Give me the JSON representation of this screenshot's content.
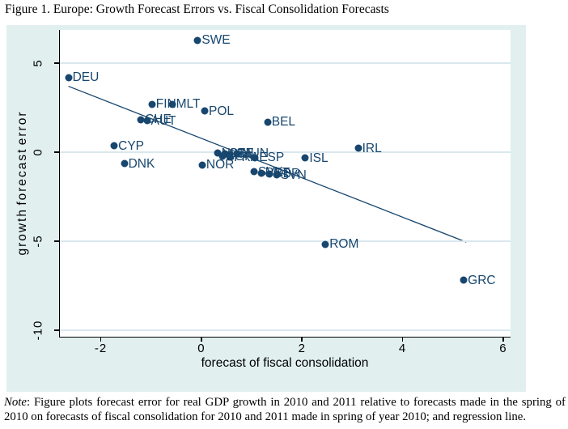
{
  "figure": {
    "title": "Figure 1. Europe: Growth Forecast Errors vs. Fiscal Consolidation Forecasts",
    "note_label": "Note",
    "note_text": ": Figure plots forecast error for real GDP growth in 2010 and 2011 relative to forecasts made in the spring of 2010 on forecasts of fiscal consolidation for 2010 and 2011 made in spring of year 2010; and regression line."
  },
  "chart_data": {
    "type": "scatter",
    "title": "Figure 1. Europe: Growth Forecast Errors vs. Fiscal Consolidation Forecasts",
    "xlabel": "forecast of fiscal consolidation",
    "ylabel": "growth forecast error",
    "xlim": [
      -2.83,
      6.13
    ],
    "ylim": [
      -10.36,
      6.86
    ],
    "xticks": [
      -2,
      0,
      2,
      4,
      6
    ],
    "yticks": [
      5,
      0,
      -5,
      -10
    ],
    "grid": true,
    "legend": "none",
    "marker_color": "#17466e",
    "label_color": "#17466e",
    "line_color": "#17466e",
    "grid_color": "#d9e8ee",
    "plot_bg": "#ffffff",
    "graph_bg": "#e1efef",
    "points": [
      {
        "label": "SWE",
        "x": -0.09,
        "y": 6.27
      },
      {
        "label": "DEU",
        "x": -2.66,
        "y": 4.18
      },
      {
        "label": "FIN",
        "x": -1.0,
        "y": 2.68
      },
      {
        "label": "MLT",
        "x": -0.6,
        "y": 2.7
      },
      {
        "label": "POL",
        "x": 0.05,
        "y": 2.3
      },
      {
        "label": "CHE",
        "x": -1.22,
        "y": 1.82
      },
      {
        "label": "AUT",
        "x": -1.1,
        "y": 1.76
      },
      {
        "label": "BEL",
        "x": 1.3,
        "y": 1.7
      },
      {
        "label": "CYP",
        "x": -1.75,
        "y": 0.35
      },
      {
        "label": "DNK",
        "x": -1.55,
        "y": -0.65
      },
      {
        "label": "NOR",
        "x": 0.0,
        "y": -0.72
      },
      {
        "label": "NLD",
        "x": 0.3,
        "y": -0.05
      },
      {
        "label": "CZE",
        "x": 0.45,
        "y": -0.08
      },
      {
        "label": "ITA",
        "x": 0.55,
        "y": -0.12
      },
      {
        "label": "HUN",
        "x": 0.7,
        "y": -0.07
      },
      {
        "label": "BGR",
        "x": 0.4,
        "y": -0.25
      },
      {
        "label": "FRA",
        "x": 0.55,
        "y": -0.28
      },
      {
        "label": "ESP",
        "x": 1.05,
        "y": -0.3
      },
      {
        "label": "ISL",
        "x": 2.05,
        "y": -0.33
      },
      {
        "label": "IRL",
        "x": 3.1,
        "y": 0.22
      },
      {
        "label": "SVK",
        "x": 1.03,
        "y": -1.1
      },
      {
        "label": "PRT",
        "x": 1.17,
        "y": -1.16
      },
      {
        "label": "GBR",
        "x": 1.33,
        "y": -1.22
      },
      {
        "label": "SVN",
        "x": 1.48,
        "y": -1.28
      },
      {
        "label": "ROM",
        "x": 2.45,
        "y": -5.17
      },
      {
        "label": "GRC",
        "x": 5.2,
        "y": -7.2
      }
    ],
    "regression": {
      "x1": -2.66,
      "y1": 3.7,
      "x2": 5.25,
      "y2": -5.05
    }
  }
}
